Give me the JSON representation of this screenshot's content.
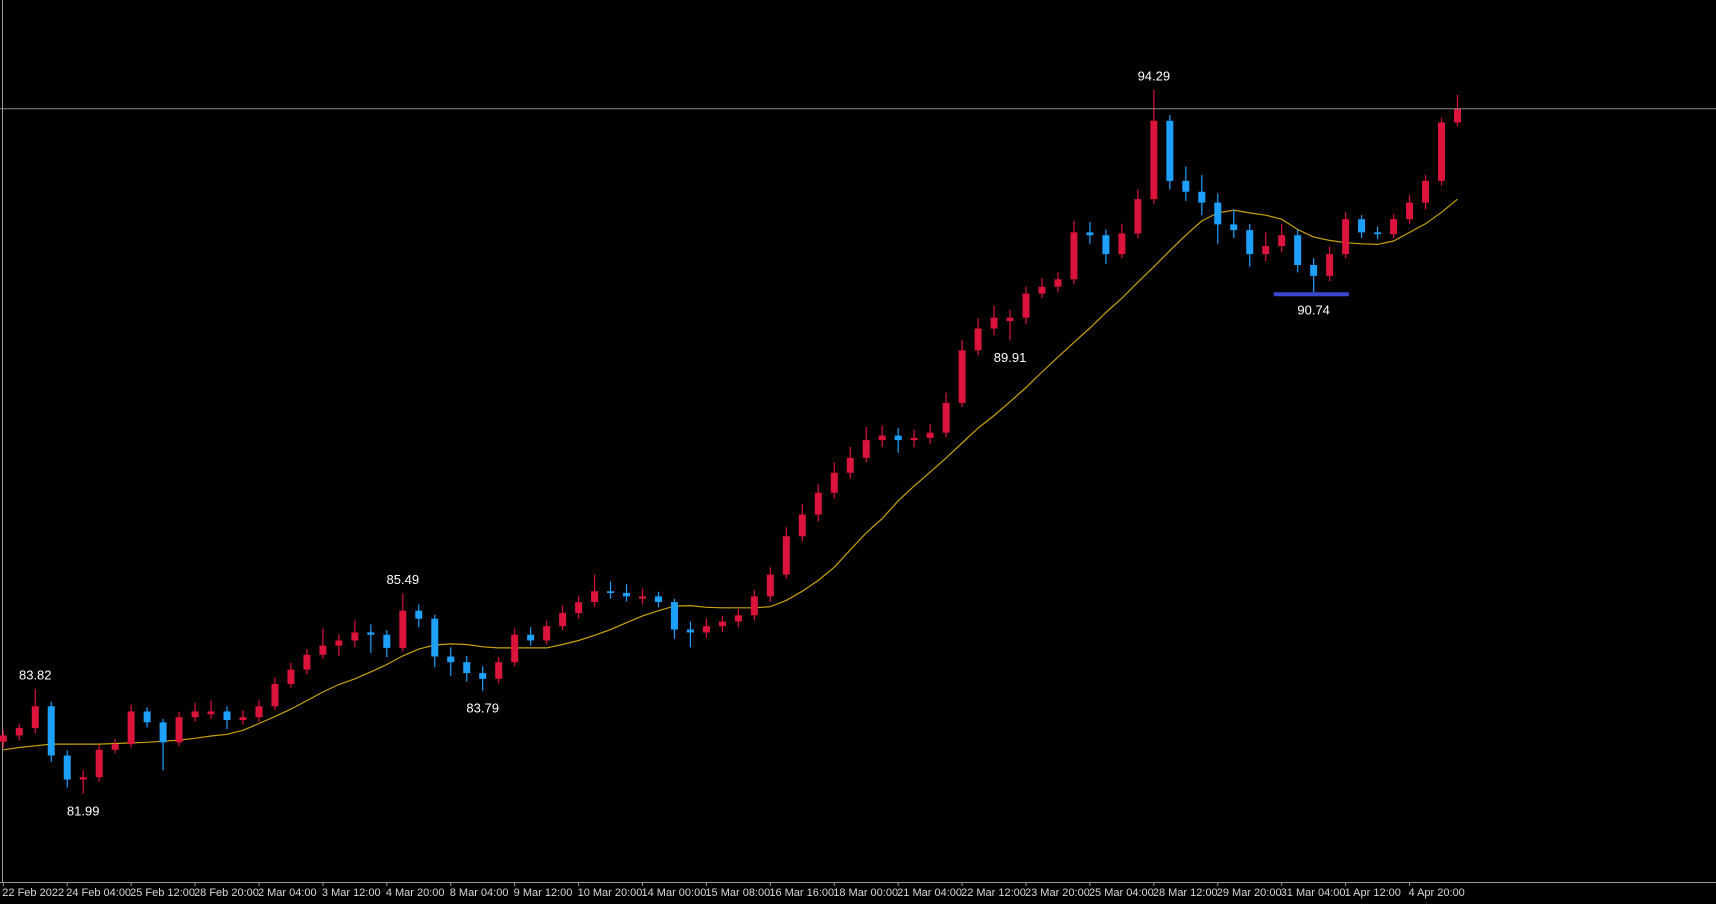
{
  "chart_data": {
    "type": "candlestick",
    "categories": [
      "22 Feb 2022",
      null,
      null,
      null,
      "24 Feb 04:00",
      null,
      null,
      null,
      "25 Feb 12:00",
      null,
      null,
      null,
      "28 Feb 20:00",
      null,
      null,
      null,
      "2 Mar 04:00",
      null,
      null,
      null,
      "3 Mar 12:00",
      null,
      null,
      null,
      "4 Mar 20:00",
      null,
      null,
      null,
      "8 Mar 04:00",
      null,
      null,
      null,
      "9 Mar 12:00",
      null,
      null,
      null,
      "10 Mar 20:00",
      null,
      null,
      null,
      "14 Mar 00:00",
      null,
      null,
      null,
      "15 Mar 08:00",
      null,
      null,
      null,
      "16 Mar 16:00",
      null,
      null,
      null,
      "18 Mar 00:00",
      null,
      null,
      null,
      "21 Mar 04:00",
      null,
      null,
      null,
      "22 Mar 12:00",
      null,
      null,
      null,
      "23 Mar 20:00",
      null,
      null,
      null,
      "25 Mar 04:00",
      null,
      null,
      null,
      "28 Mar 12:00",
      null,
      null,
      null,
      "29 Mar 20:00",
      null,
      null,
      null,
      "31 Mar 04:00",
      null,
      null,
      null,
      "1 Apr 12:00",
      null,
      null,
      null,
      "4 Apr 20:00",
      null,
      null,
      null
    ],
    "open": [
      82.9,
      83.01,
      83.14,
      83.52,
      82.66,
      82.24,
      82.28,
      82.76,
      82.86,
      83.43,
      83.24,
      82.89,
      83.33,
      83.38,
      83.43,
      83.28,
      83.33,
      83.52,
      83.91,
      84.16,
      84.42,
      84.58,
      84.67,
      84.81,
      84.77,
      84.54,
      85.19,
      85.05,
      84.39,
      84.29,
      84.1,
      84.0,
      84.29,
      84.77,
      84.67,
      84.92,
      85.15,
      85.34,
      85.53,
      85.5,
      85.4,
      85.44,
      85.34,
      84.86,
      84.81,
      84.92,
      85.0,
      85.11,
      85.44,
      85.82,
      86.49,
      86.87,
      87.25,
      87.6,
      87.86,
      88.17,
      88.25,
      88.17,
      88.21,
      88.3,
      88.82,
      89.74,
      90.12,
      90.25,
      90.31,
      90.73,
      90.85,
      90.98,
      91.8,
      91.75,
      91.42,
      91.78,
      92.38,
      93.75,
      92.7,
      92.51,
      92.32,
      91.94,
      91.84,
      91.42,
      91.56,
      91.75,
      91.23,
      91.04,
      91.42,
      92.03,
      91.8,
      91.77,
      92.03,
      92.32,
      92.7,
      93.72
    ],
    "high": [
      83.1,
      83.22,
      83.82,
      83.6,
      82.75,
      82.4,
      82.85,
      82.95,
      83.55,
      83.5,
      83.3,
      83.42,
      83.58,
      83.62,
      83.52,
      83.45,
      83.63,
      84.02,
      84.28,
      84.52,
      84.88,
      84.78,
      85.02,
      84.95,
      84.85,
      85.49,
      85.3,
      85.12,
      84.55,
      84.4,
      84.22,
      84.38,
      84.88,
      84.9,
      85.02,
      85.28,
      85.45,
      85.82,
      85.7,
      85.65,
      85.58,
      85.52,
      85.4,
      85.0,
      85.05,
      85.1,
      85.22,
      85.55,
      85.95,
      86.65,
      87.05,
      87.4,
      87.78,
      88.05,
      88.4,
      88.42,
      88.38,
      88.35,
      88.45,
      89.0,
      89.92,
      90.3,
      90.52,
      90.45,
      90.85,
      91.0,
      91.1,
      92.0,
      91.98,
      91.85,
      91.95,
      92.55,
      94.29,
      93.85,
      92.95,
      92.8,
      92.48,
      92.2,
      91.95,
      91.8,
      91.95,
      91.85,
      91.35,
      91.55,
      92.15,
      92.1,
      91.9,
      92.12,
      92.45,
      92.8,
      93.8,
      94.2
    ],
    "low": [
      82.8,
      82.92,
      83.05,
      82.55,
      82.1,
      81.99,
      82.2,
      82.7,
      82.8,
      83.15,
      82.4,
      82.82,
      83.25,
      83.3,
      83.12,
      83.2,
      83.25,
      83.45,
      83.85,
      84.08,
      84.35,
      84.4,
      84.55,
      84.45,
      84.38,
      84.48,
      84.9,
      84.2,
      84.05,
      83.95,
      83.79,
      83.92,
      84.22,
      84.58,
      84.6,
      84.85,
      85.05,
      85.25,
      85.4,
      85.35,
      85.3,
      85.25,
      84.7,
      84.55,
      84.72,
      84.82,
      84.9,
      85.02,
      85.35,
      85.75,
      86.4,
      86.75,
      87.15,
      87.5,
      87.78,
      88.05,
      87.95,
      88.05,
      88.1,
      88.22,
      88.75,
      89.65,
      90.0,
      89.91,
      90.2,
      90.65,
      90.75,
      90.9,
      91.6,
      91.25,
      91.35,
      91.7,
      92.3,
      92.55,
      92.35,
      92.1,
      91.6,
      91.7,
      91.2,
      91.3,
      91.45,
      91.1,
      90.74,
      90.95,
      91.35,
      91.7,
      91.68,
      91.7,
      91.95,
      92.2,
      92.62,
      93.65
    ],
    "close": [
      83.01,
      83.14,
      83.52,
      82.66,
      82.24,
      82.28,
      82.76,
      82.86,
      83.43,
      83.24,
      82.89,
      83.33,
      83.43,
      83.43,
      83.28,
      83.33,
      83.52,
      83.91,
      84.16,
      84.42,
      84.58,
      84.67,
      84.81,
      84.77,
      84.54,
      85.19,
      85.05,
      84.39,
      84.29,
      84.1,
      84.0,
      84.29,
      84.77,
      84.67,
      84.92,
      85.15,
      85.34,
      85.53,
      85.5,
      85.44,
      85.44,
      85.34,
      84.86,
      84.81,
      84.92,
      85.0,
      85.11,
      85.44,
      85.82,
      86.49,
      86.87,
      87.25,
      87.6,
      87.86,
      88.17,
      88.25,
      88.17,
      88.21,
      88.3,
      88.82,
      89.74,
      90.12,
      90.31,
      90.31,
      90.73,
      90.85,
      90.98,
      91.8,
      91.75,
      91.42,
      91.78,
      92.38,
      93.75,
      92.7,
      92.51,
      92.32,
      91.94,
      91.84,
      91.42,
      91.56,
      91.75,
      91.23,
      91.04,
      91.42,
      92.03,
      91.8,
      91.77,
      92.03,
      92.32,
      92.7,
      93.72,
      93.96
    ],
    "ma": [
      82.76,
      82.8,
      82.83,
      82.86,
      82.86,
      82.86,
      82.86,
      82.87,
      82.88,
      82.89,
      82.91,
      82.93,
      82.96,
      83.0,
      83.03,
      83.1,
      83.22,
      83.34,
      83.47,
      83.62,
      83.77,
      83.9,
      84.0,
      84.12,
      84.25,
      84.4,
      84.52,
      84.59,
      84.61,
      84.6,
      84.56,
      84.54,
      84.54,
      84.54,
      84.54,
      84.6,
      84.67,
      84.76,
      84.86,
      84.98,
      85.1,
      85.19,
      85.27,
      85.28,
      85.25,
      85.24,
      85.24,
      85.24,
      85.26,
      85.37,
      85.53,
      85.72,
      85.95,
      86.25,
      86.55,
      86.8,
      87.11,
      87.37,
      87.61,
      87.86,
      88.12,
      88.38,
      88.6,
      88.84,
      89.09,
      89.36,
      89.62,
      89.88,
      90.13,
      90.4,
      90.65,
      90.93,
      91.2,
      91.48,
      91.75,
      92.0,
      92.14,
      92.19,
      92.14,
      92.1,
      92.03,
      91.85,
      91.72,
      91.66,
      91.62,
      91.6,
      91.59,
      91.65,
      91.8,
      91.95,
      92.15,
      92.38
    ],
    "annotations": [
      83.82,
      81.99,
      85.49,
      83.79,
      89.91,
      94.29,
      90.74
    ],
    "level": 90.72,
    "ylim": [
      80.45,
      95.86
    ],
    "up_color": "#dc143c",
    "down_color": "#1ea0ff",
    "ma_color": "#c9a20b",
    "level_color": "#3a48d0",
    "bid_color": "#8a8a8a"
  }
}
